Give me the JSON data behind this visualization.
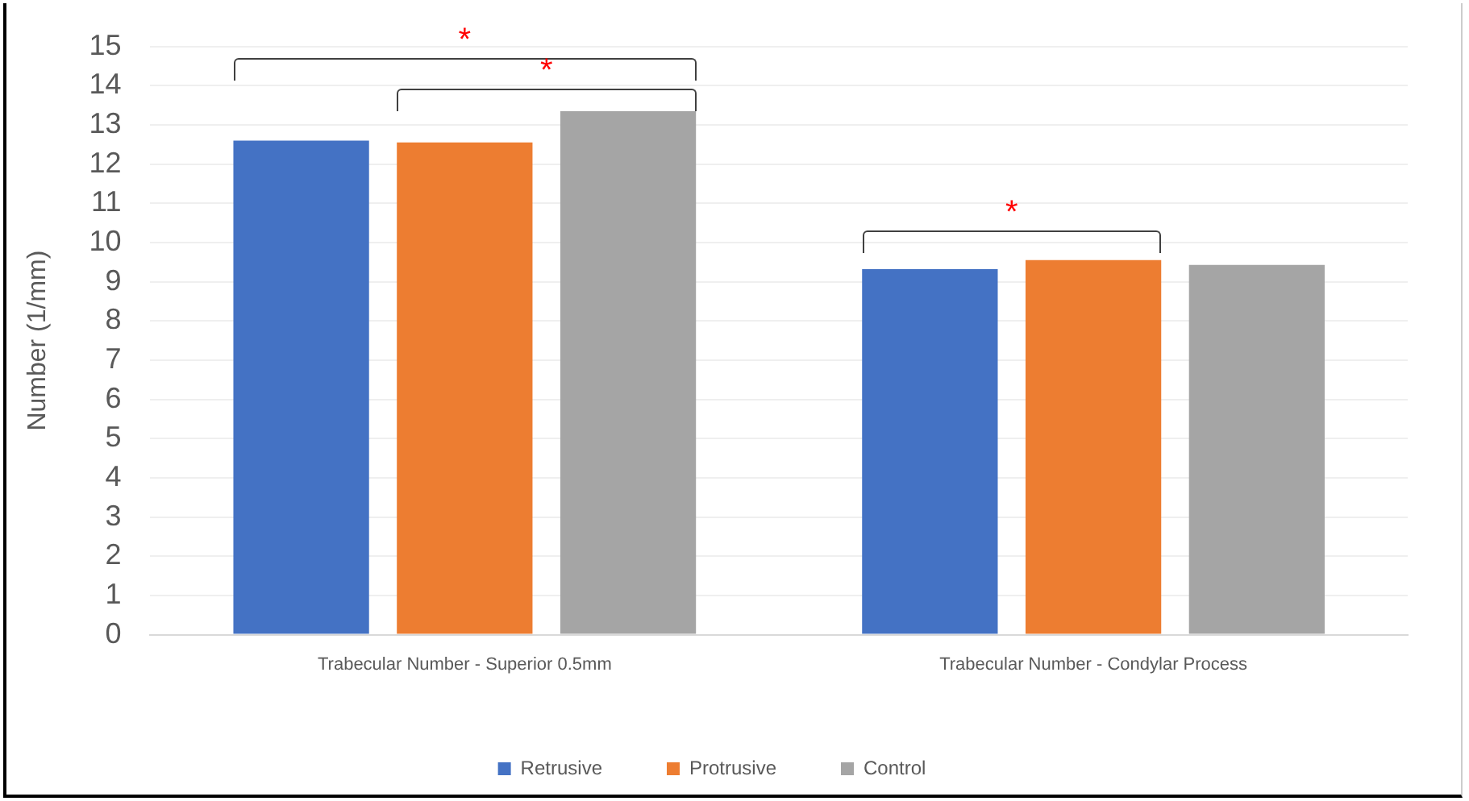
{
  "chart_data": {
    "type": "bar",
    "ylabel": "Number (1/mm)",
    "categories": [
      "Trabecular Number - Superior 0.5mm",
      "Trabecular Number - Condylar Process"
    ],
    "series": [
      {
        "name": "Retrusive",
        "color": "#4472c4",
        "values": [
          12.6,
          9.32
        ]
      },
      {
        "name": "Protrusive",
        "color": "#ed7d31",
        "values": [
          12.55,
          9.55
        ]
      },
      {
        "name": "Control",
        "color": "#a5a5a5",
        "values": [
          13.35,
          9.43
        ]
      }
    ],
    "ylim": [
      0,
      15
    ],
    "yticks": [
      0,
      1,
      2,
      3,
      4,
      5,
      6,
      7,
      8,
      9,
      10,
      11,
      12,
      13,
      14,
      15
    ],
    "grid": "y",
    "legend": "bottom",
    "annotations": [
      "*",
      "*",
      "*"
    ]
  }
}
